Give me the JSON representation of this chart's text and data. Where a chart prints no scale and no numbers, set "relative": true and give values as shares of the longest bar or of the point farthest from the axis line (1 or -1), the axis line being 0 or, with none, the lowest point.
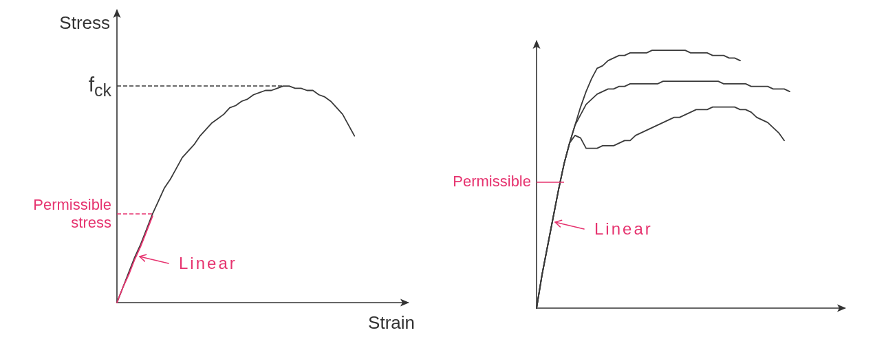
{
  "chart_data": [
    {
      "type": "line",
      "relative": true,
      "ylabel": "Stress",
      "xlabel": "Strain",
      "marker": "none",
      "categories": [
        null,
        null,
        null,
        null,
        null,
        null,
        null,
        null,
        null,
        null,
        null,
        null,
        null,
        null,
        null,
        null,
        null,
        null,
        null,
        null,
        null,
        null,
        null,
        null,
        null,
        null,
        null,
        null,
        null,
        null,
        null,
        null,
        null,
        null,
        null,
        null,
        null,
        null,
        null,
        null,
        null,
        null,
        null,
        null,
        null,
        null,
        null,
        null,
        null,
        null
      ],
      "series": [
        {
          "color": "#3a3a3a",
          "values": [
            0,
            0.07,
            0.14,
            0.21,
            0.27,
            0.34,
            0.41,
            0.47,
            0.53,
            0.57,
            0.62,
            0.67,
            0.7,
            0.73,
            0.77,
            0.8,
            0.83,
            0.85,
            0.87,
            0.9,
            0.91,
            0.93,
            0.94,
            0.96,
            0.97,
            0.98,
            0.98,
            0.99,
            1,
            1,
            0.99,
            0.99,
            0.98,
            0.98,
            0.96,
            0.95,
            0.93,
            0.9,
            0.87,
            0.82,
            0.77,
            null,
            null,
            null,
            null,
            null,
            null,
            null,
            null,
            null
          ]
        },
        {
          "color": "#e6336f",
          "values": [
            0,
            0.07,
            0.13,
            0.2,
            0.26,
            0.33,
            0.4,
            null,
            null,
            null,
            null,
            null,
            null,
            null,
            null,
            null,
            null,
            null,
            null,
            null,
            null,
            null,
            null,
            null,
            null,
            null,
            null,
            null,
            null,
            null,
            null,
            null,
            null,
            null,
            null,
            null,
            null,
            null,
            null,
            null,
            null,
            null,
            null,
            null,
            null,
            null,
            null,
            null,
            null,
            null
          ]
        }
      ],
      "ref_lines": [
        {
          "axis": "y",
          "value": 1,
          "label": "f$_{ck}$",
          "color": "#3a3a3a",
          "line_style": "dashed"
        },
        {
          "axis": "y",
          "value": 0.41,
          "label": "Permissible stress",
          "color": "#e6336f",
          "line_style": "dashed"
        }
      ],
      "annotations": [
        "Linear"
      ]
    },
    {
      "type": "line",
      "relative": true,
      "marker": "none",
      "categories": [
        null,
        null,
        null,
        null,
        null,
        null,
        null,
        null,
        null,
        null,
        null,
        null,
        null,
        null,
        null,
        null,
        null,
        null,
        null,
        null,
        null,
        null,
        null,
        null,
        null,
        null,
        null,
        null,
        null,
        null,
        null,
        null,
        null,
        null,
        null,
        null,
        null,
        null,
        null,
        null,
        null,
        null,
        null,
        null,
        null,
        null,
        null,
        null,
        null,
        null,
        null,
        null,
        null,
        null,
        null,
        null,
        null
      ],
      "series": [
        {
          "color": "#3a3a3a",
          "values": [
            0,
            0.13,
            0.24,
            0.35,
            0.46,
            0.56,
            0.64,
            0.71,
            0.78,
            0.84,
            0.89,
            0.93,
            0.94,
            0.96,
            0.97,
            0.98,
            0.98,
            0.99,
            0.99,
            0.99,
            0.99,
            1,
            1,
            1,
            1,
            1,
            1,
            1,
            0.99,
            0.99,
            0.99,
            0.99,
            0.98,
            0.98,
            0.98,
            0.97,
            0.97,
            0.96,
            null,
            null,
            null,
            null,
            null,
            null,
            null,
            null,
            null,
            null,
            null,
            null,
            null,
            null,
            null,
            null,
            null,
            null,
            null
          ]
        },
        {
          "color": "#3a3a3a",
          "values": [
            0,
            0.13,
            0.24,
            0.35,
            0.46,
            0.56,
            0.64,
            0.71,
            0.75,
            0.79,
            0.81,
            0.83,
            0.84,
            0.85,
            0.85,
            0.86,
            0.86,
            0.87,
            0.87,
            0.87,
            0.87,
            0.87,
            0.87,
            0.88,
            0.88,
            0.88,
            0.88,
            0.88,
            0.88,
            0.88,
            0.88,
            0.88,
            0.88,
            0.88,
            0.87,
            0.87,
            0.87,
            0.87,
            0.87,
            0.86,
            0.86,
            0.86,
            0.86,
            0.85,
            0.85,
            0.85,
            0.84,
            null,
            null,
            null,
            null,
            null,
            null,
            null,
            null,
            null,
            null
          ]
        },
        {
          "color": "#3a3a3a",
          "values": [
            0,
            0.13,
            0.24,
            0.35,
            0.46,
            0.56,
            0.64,
            0.67,
            0.66,
            0.62,
            0.62,
            0.62,
            0.63,
            0.63,
            0.63,
            0.64,
            0.65,
            0.65,
            0.67,
            0.68,
            0.69,
            0.7,
            0.71,
            0.72,
            0.73,
            0.74,
            0.74,
            0.75,
            0.76,
            0.77,
            0.77,
            0.77,
            0.78,
            0.78,
            0.78,
            0.78,
            0.78,
            0.77,
            0.77,
            0.76,
            0.74,
            0.73,
            0.72,
            0.7,
            0.68,
            0.65,
            null,
            null,
            null,
            null,
            null,
            null,
            null,
            null,
            null,
            null,
            null
          ]
        }
      ],
      "ref_lines": [
        {
          "axis": "y",
          "value": 0.49,
          "label": "Permissible",
          "color": "#e6336f",
          "line_style": "solid"
        }
      ],
      "annotations": [
        "Linear"
      ]
    }
  ]
}
